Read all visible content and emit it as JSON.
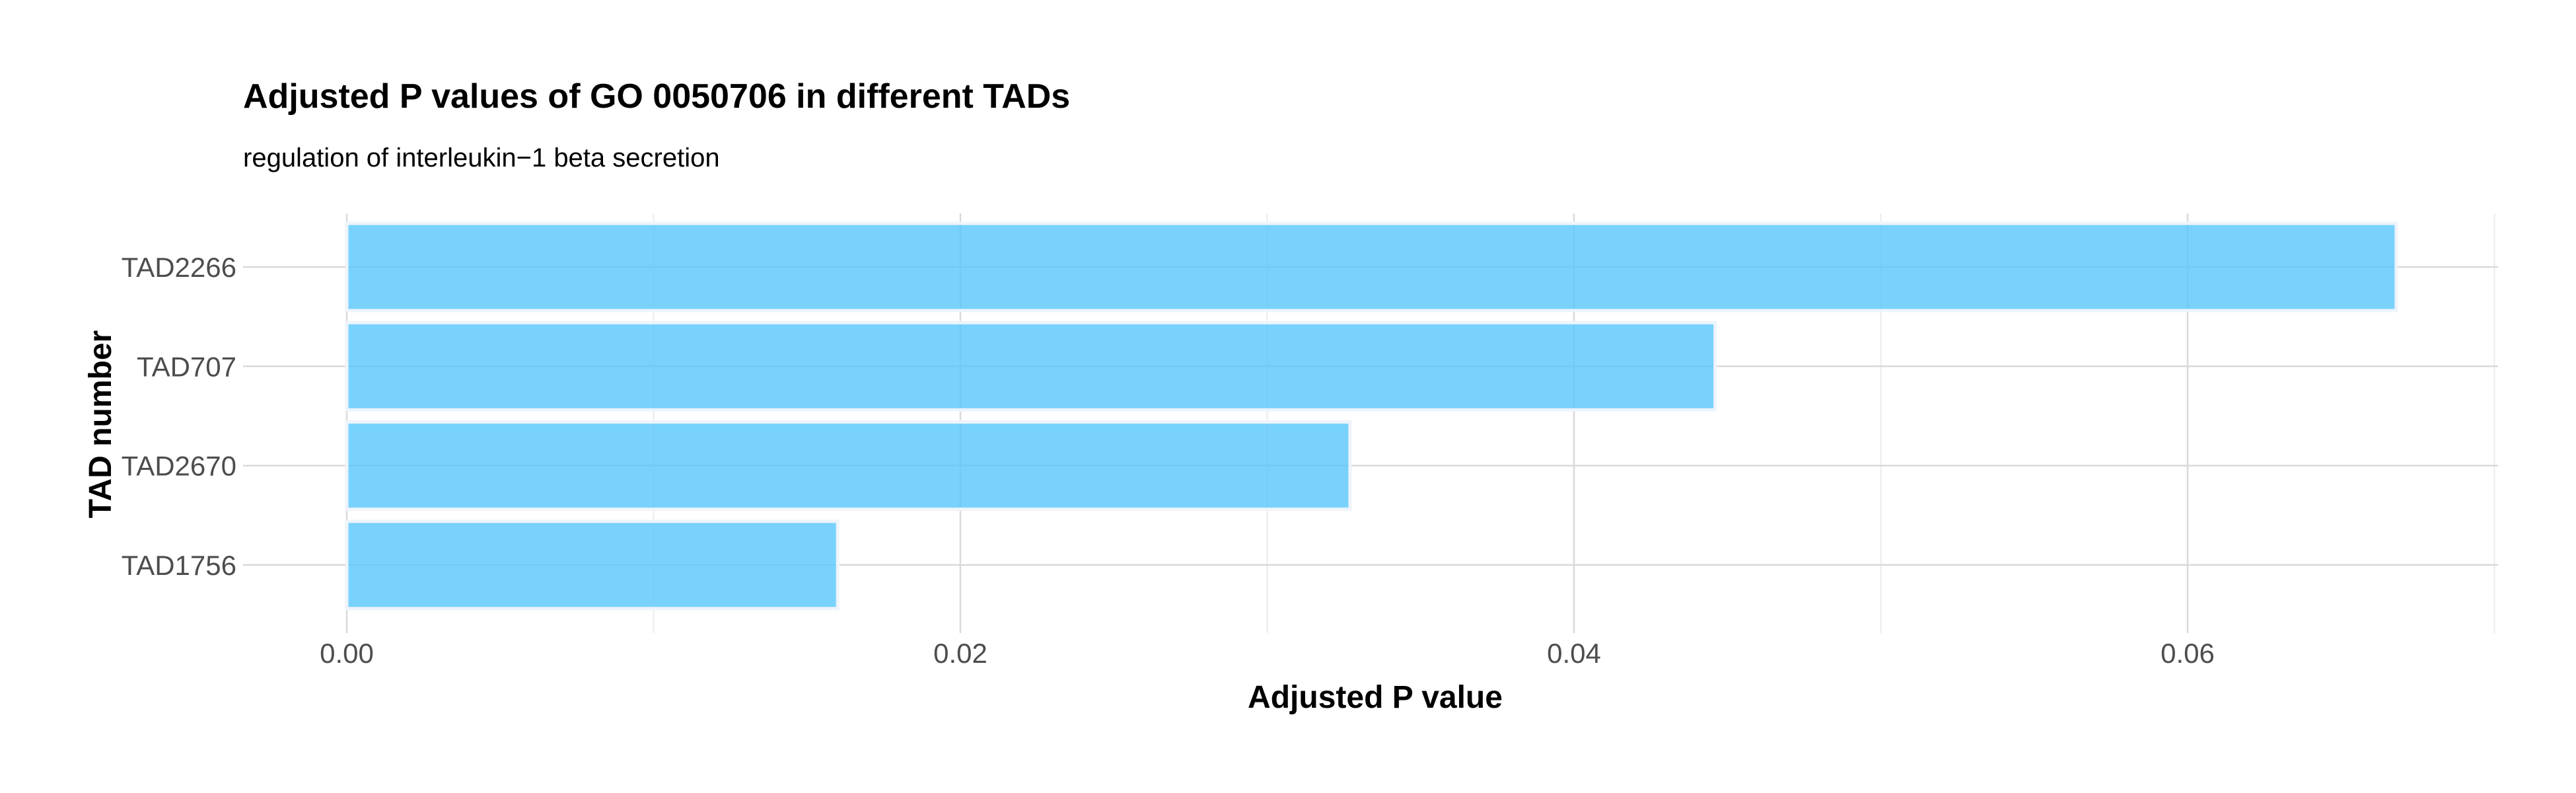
{
  "chart_data": {
    "type": "bar",
    "orientation": "horizontal",
    "title": "Adjusted P values of GO 0050706 in different TADs",
    "subtitle": "regulation of interleukin−1 beta secretion",
    "xlabel": "Adjusted P value",
    "ylabel": "TAD number",
    "categories": [
      "TAD2266",
      "TAD707",
      "TAD2670",
      "TAD1756"
    ],
    "values": [
      0.0668,
      0.0446,
      0.0327,
      0.016
    ],
    "xlim": [
      0,
      0.07
    ],
    "x_ticks": [
      "0.00",
      "0.02",
      "0.04",
      "0.06"
    ],
    "x_tick_values": [
      0,
      0.02,
      0.04,
      0.06
    ],
    "x_minor_tick_values": [
      0.01,
      0.03,
      0.05,
      0.07
    ],
    "grid": true,
    "bar_color": "#5BC8FB",
    "bar_outline_color": "#EEF4FB"
  }
}
